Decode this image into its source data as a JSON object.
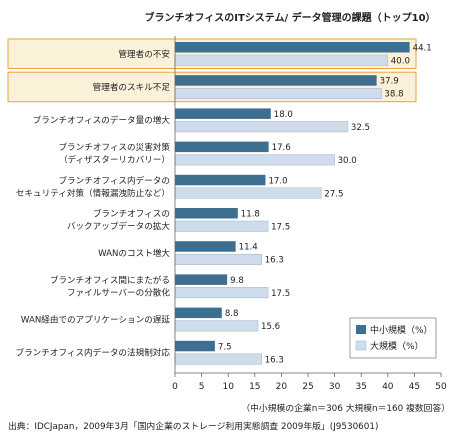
{
  "chart_data": {
    "type": "bar",
    "orientation": "horizontal",
    "title": "ブランチオフィスのITシステム/ データ管理の課題（トップ10）",
    "categories": [
      [
        "管理者の不安"
      ],
      [
        "管理者のスキル不足"
      ],
      [
        "ブランチオフィスのデータ量の増大"
      ],
      [
        "ブランチオフィスの災害対策",
        "（ディザスターリカバリー）"
      ],
      [
        "ブランチオフィス内データの",
        "セキュリティ対策（情報漏洩防止など）"
      ],
      [
        "ブランチオフィスの",
        "バックアップデータの拡大"
      ],
      [
        "WANのコスト増大"
      ],
      [
        "ブランチオフィス間にまたがる",
        "ファイルサーバーの分散化"
      ],
      [
        "WAN経由でのアプリケーションの遅延"
      ],
      [
        "ブランチオフィス内データの法規制対応"
      ]
    ],
    "series": [
      {
        "name": "中小規模（%）",
        "color": "#3e6f91",
        "values": [
          44.1,
          37.9,
          18.0,
          17.6,
          17.0,
          11.8,
          11.4,
          9.8,
          8.8,
          7.5
        ]
      },
      {
        "name": "大規模（%）",
        "color": "#cfdcec",
        "values": [
          40.0,
          38.8,
          32.5,
          30.0,
          27.5,
          17.5,
          16.3,
          17.5,
          15.6,
          16.3
        ]
      }
    ],
    "highlighted_categories": [
      0,
      1
    ],
    "highlight_color": "#e8a33c",
    "xlim": [
      0,
      50
    ],
    "xticks": [
      0,
      5,
      10,
      15,
      20,
      25,
      30,
      35,
      40,
      45,
      50
    ],
    "legend_position": "bottom-right",
    "grid": false,
    "sample_note": "（中小規模の企業n＝306 大規模n＝160 複数回答）",
    "source": "出典：IDCJapan，2009年3月「国内企業のストレージ利用実態調査 2009年版」(J9530601)"
  }
}
